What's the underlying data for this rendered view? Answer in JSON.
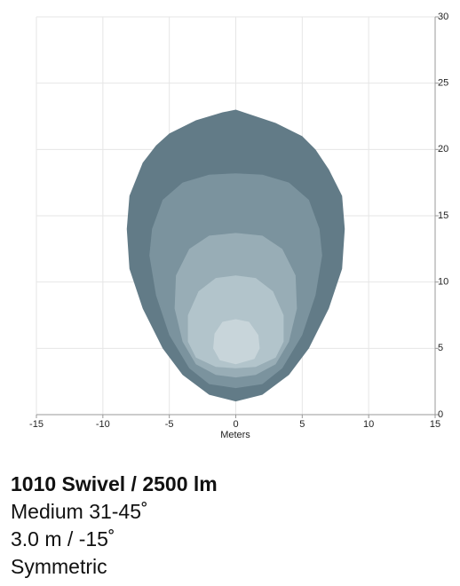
{
  "chart_data": {
    "type": "contour",
    "xlabel": "Meters",
    "xlim": [
      -15,
      15
    ],
    "ylim": [
      0,
      30
    ],
    "xticks": [
      -15,
      -10,
      -5,
      0,
      5,
      10,
      15
    ],
    "yticks": [
      0,
      5,
      10,
      15,
      20,
      25,
      30
    ],
    "grid": true,
    "series": [
      {
        "color": "#627b87",
        "x": [
          -5,
          -3,
          -1,
          0,
          1.5,
          3,
          5,
          6,
          7,
          8,
          8.2,
          8,
          7,
          5.5,
          4,
          2,
          0,
          -2,
          -4,
          -5.5,
          -7,
          -8,
          -8.2,
          -8,
          -7,
          -6
        ],
        "y": [
          21.2,
          22.2,
          22.8,
          23,
          22.5,
          22,
          21,
          20,
          18.5,
          16.5,
          14,
          11,
          8,
          5,
          3,
          1.5,
          1,
          1.5,
          3,
          5,
          8,
          11,
          14,
          16.5,
          19,
          20.3
        ]
      },
      {
        "color": "#7b939e",
        "x": [
          -4,
          -2,
          0,
          2,
          4,
          5.5,
          6.3,
          6.5,
          6,
          5,
          3.5,
          2,
          0,
          -2,
          -3.5,
          -5,
          -6,
          -6.5,
          -6.3,
          -5.5
        ],
        "y": [
          17.5,
          18.1,
          18.2,
          18.1,
          17.5,
          16.2,
          14,
          12,
          9,
          6,
          3.5,
          2.3,
          2,
          2.3,
          3.5,
          6,
          9,
          12,
          14,
          16.2
        ]
      },
      {
        "color": "#98adb6",
        "x": [
          -2,
          0,
          2,
          3.5,
          4.5,
          4.6,
          4,
          3,
          1.5,
          0,
          -1.5,
          -3,
          -4,
          -4.6,
          -4.5,
          -3.5
        ],
        "y": [
          13.5,
          13.7,
          13.5,
          12.5,
          10.5,
          8,
          5.5,
          3.8,
          3,
          2.8,
          3,
          3.8,
          5.5,
          8,
          10.5,
          12.5
        ]
      },
      {
        "color": "#b2c4cb",
        "x": [
          -1.5,
          0,
          1.5,
          2.8,
          3.6,
          3.6,
          3,
          1.5,
          0,
          -1.5,
          -3,
          -3.6,
          -3.6,
          -2.8
        ],
        "y": [
          10.3,
          10.5,
          10.3,
          9.3,
          7.5,
          5.5,
          4.3,
          3.6,
          3.5,
          3.6,
          4.3,
          5.5,
          7.5,
          9.3
        ]
      },
      {
        "color": "#c8d5da",
        "x": [
          -1,
          0,
          1,
          1.7,
          1.8,
          1.4,
          0,
          -1.2,
          -1.7,
          -1.6
        ],
        "y": [
          7,
          7.2,
          7,
          6,
          5,
          4.2,
          3.8,
          4.1,
          5,
          6.1
        ]
      }
    ]
  },
  "product": {
    "title": "1010 Swivel / 2500 lm",
    "lines": [
      "Medium 31-45˚",
      "3.0 m / -15˚",
      "Symmetric"
    ]
  }
}
